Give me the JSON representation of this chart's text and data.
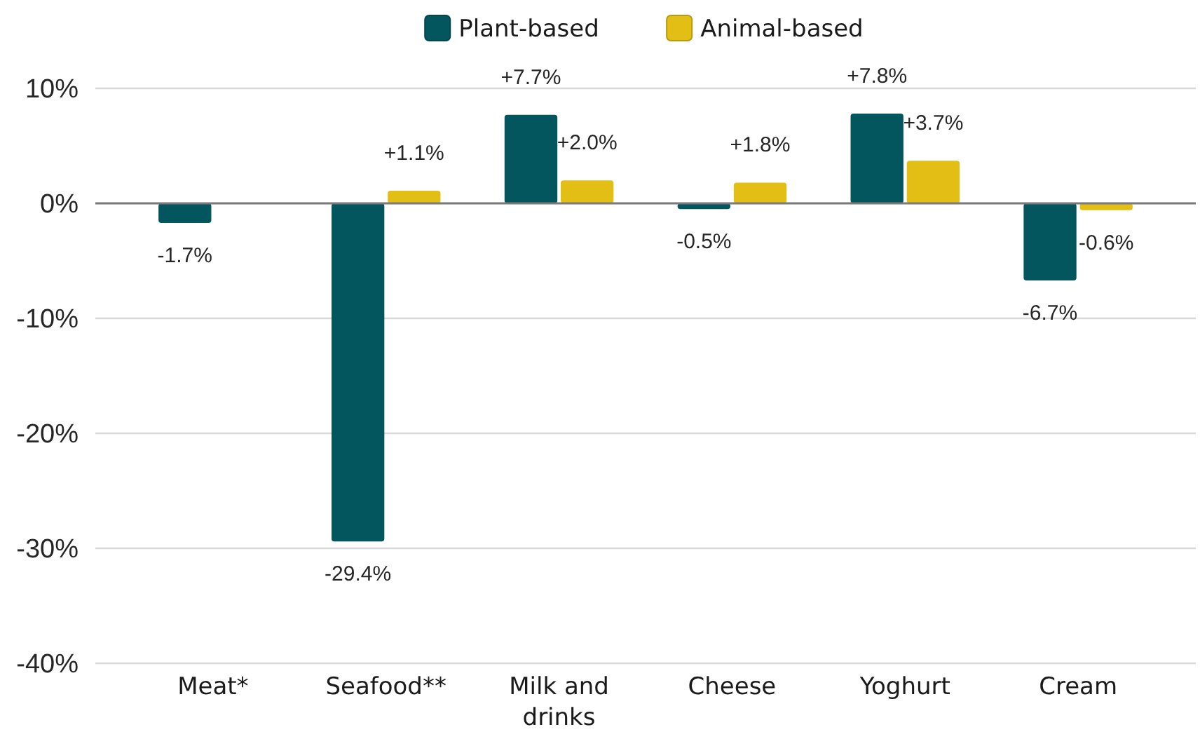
{
  "chart_data": {
    "type": "bar",
    "categories": [
      "Meat*",
      "Seafood**",
      "Milk and drinks",
      "Cheese",
      "Yoghurt",
      "Cream"
    ],
    "series": [
      {
        "name": "Plant-based",
        "color": "#03565e",
        "values": [
          -1.7,
          -29.4,
          7.7,
          -0.5,
          7.8,
          -6.7
        ],
        "value_labels": [
          "-1.7%",
          "-29.4%",
          "+7.7%",
          "-0.5%",
          "+7.8%",
          "-6.7%"
        ]
      },
      {
        "name": "Animal-based",
        "color": "#e3bf16",
        "values": [
          null,
          1.1,
          2.0,
          1.8,
          3.7,
          -0.6
        ],
        "value_labels": [
          null,
          "+1.1%",
          "+2.0%",
          "+1.8%",
          "+3.7%",
          "-0.6%"
        ]
      }
    ],
    "ylim": [
      -40,
      10
    ],
    "yticks": [
      {
        "value": -40,
        "label": "-40%"
      },
      {
        "value": -30,
        "label": "-30%"
      },
      {
        "value": -20,
        "label": "-20%"
      },
      {
        "value": -10,
        "label": "-10%"
      },
      {
        "value": 0,
        "label": "0%"
      },
      {
        "value": 10,
        "label": "10%"
      }
    ],
    "grid": "y",
    "legend": "top"
  }
}
